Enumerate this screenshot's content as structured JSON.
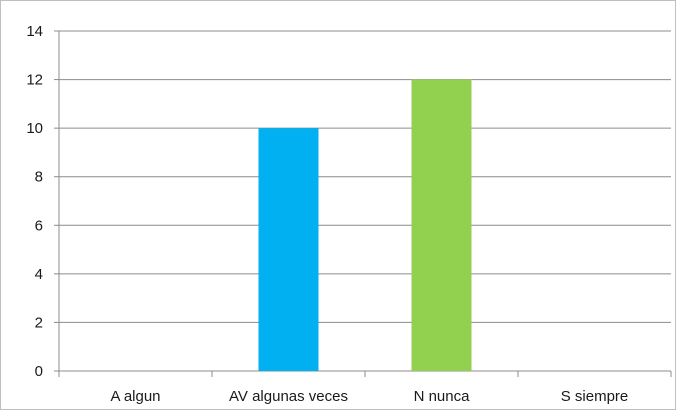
{
  "chart_data": {
    "type": "bar",
    "categories": [
      "A algun",
      "AV algunas veces",
      "N nunca",
      "S siempre"
    ],
    "values": [
      0,
      10,
      12,
      0
    ],
    "colors": [
      "#00b0f0",
      "#00b0f0",
      "#92d050",
      "#92d050"
    ],
    "ylim": [
      0,
      14
    ],
    "yticks": [
      0,
      2,
      4,
      6,
      8,
      10,
      12,
      14
    ],
    "grid": true,
    "legend": "none"
  }
}
